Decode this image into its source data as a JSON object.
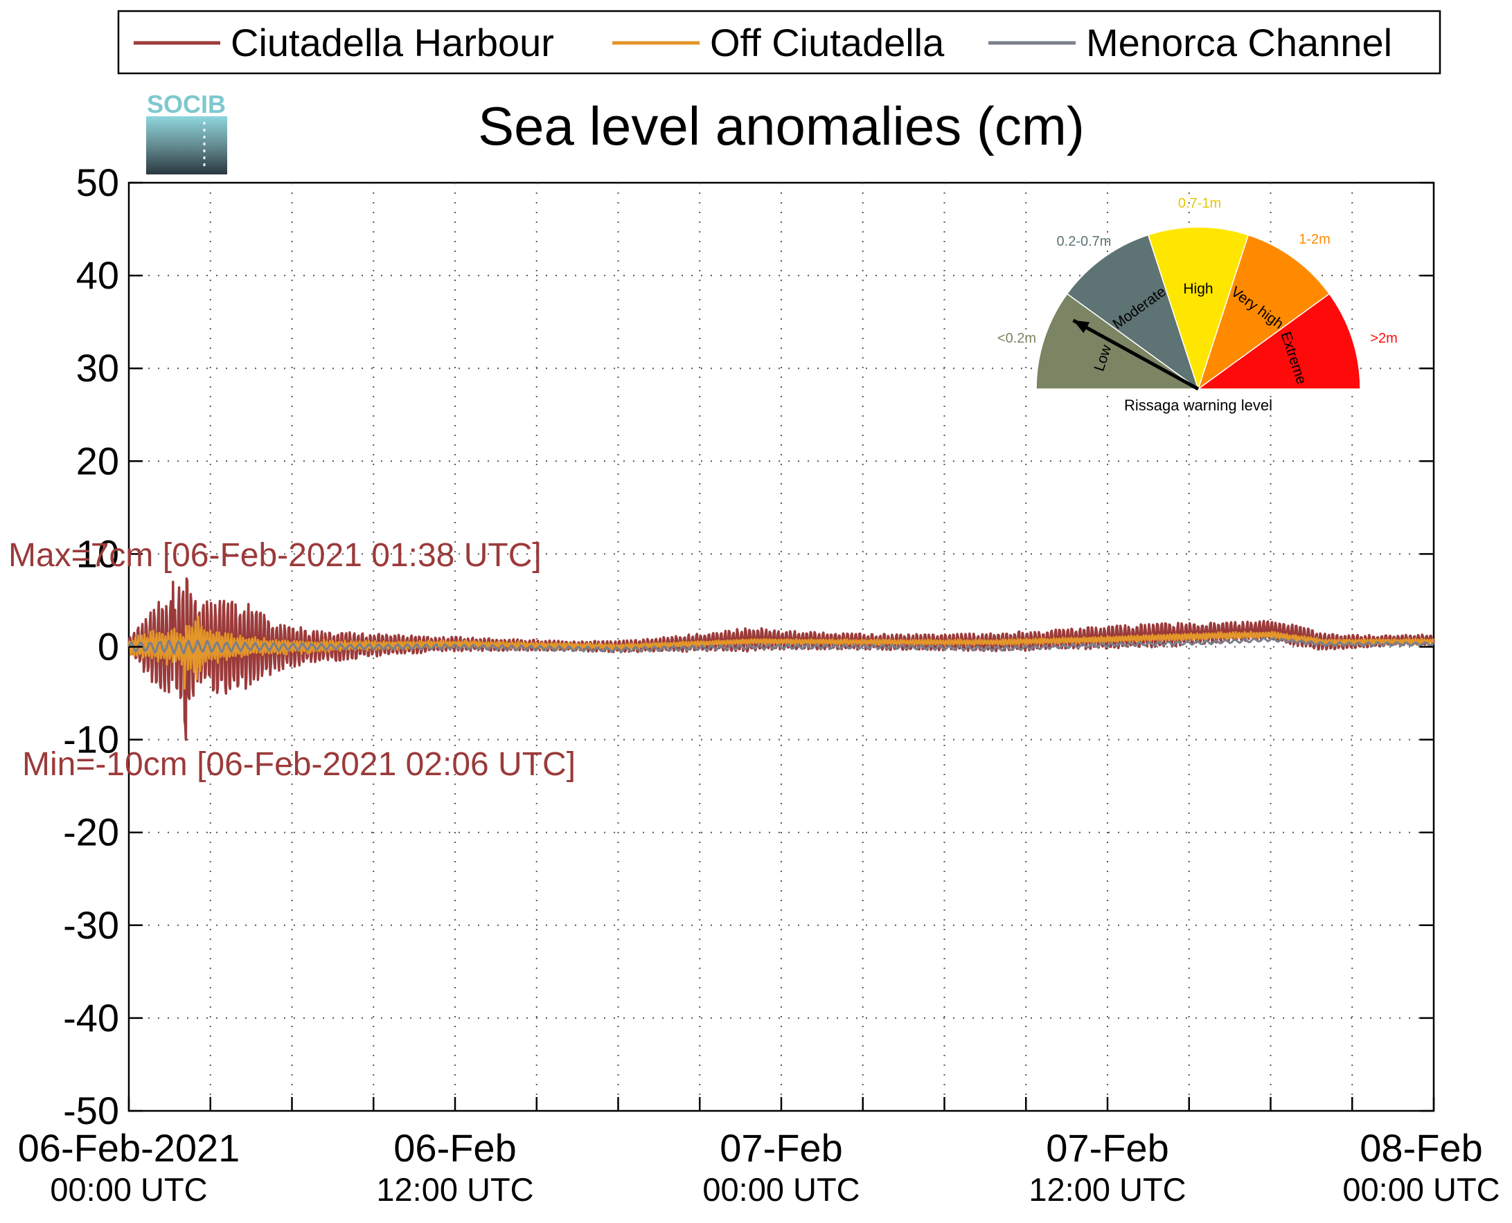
{
  "legend": {
    "items": [
      {
        "label": "Ciutadella Harbour",
        "color": "#9b3a3a"
      },
      {
        "label": "Off Ciutadella",
        "color": "#e3962a"
      },
      {
        "label": "Menorca Channel",
        "color": "#7a7f8c"
      }
    ]
  },
  "logo": {
    "text": "SOCIB"
  },
  "chart_data": {
    "type": "line",
    "title": "Sea level anomalies (cm)",
    "xlabel": "",
    "ylabel": "",
    "ylim": [
      -50,
      50
    ],
    "yticks": [
      50,
      40,
      30,
      20,
      10,
      0,
      -10,
      -20,
      -30,
      -40,
      -50
    ],
    "xlim_hours": [
      0,
      48
    ],
    "xticks": [
      {
        "line1": "06-Feb-2021",
        "line2": "00:00 UTC"
      },
      {
        "line1": "06-Feb",
        "line2": "12:00 UTC"
      },
      {
        "line1": "07-Feb",
        "line2": "00:00 UTC"
      },
      {
        "line1": "07-Feb",
        "line2": "12:00 UTC"
      },
      {
        "line1": "08-Feb",
        "line2": "00:00 UTC"
      }
    ],
    "grid": true,
    "annotations": {
      "max": "Max=7cm [06-Feb-2021 01:38 UTC]",
      "min": "Min=-10cm [06-Feb-2021 02:06 UTC]"
    },
    "series": [
      {
        "name": "Ciutadella Harbour",
        "color": "#9b3a3a",
        "envelope": [
          [
            0,
            1
          ],
          [
            0.5,
            3
          ],
          [
            1.2,
            6
          ],
          [
            1.63,
            7
          ],
          [
            2.1,
            10
          ],
          [
            2.6,
            5
          ],
          [
            3,
            6
          ],
          [
            3.5,
            6
          ],
          [
            4,
            6
          ],
          [
            4.6,
            5
          ],
          [
            5.5,
            3
          ],
          [
            7,
            2
          ],
          [
            9,
            1.5
          ],
          [
            11,
            1
          ],
          [
            13,
            0.8
          ],
          [
            16,
            0.6
          ],
          [
            19,
            0.8
          ],
          [
            23,
            1.5
          ],
          [
            24,
            1.2
          ],
          [
            26,
            1
          ],
          [
            30,
            1
          ],
          [
            34,
            1.3
          ],
          [
            38,
            1.5
          ],
          [
            41,
            1.2
          ],
          [
            43,
            1.3
          ],
          [
            45,
            0.8
          ],
          [
            48,
            0.6
          ]
        ],
        "baseline": [
          [
            0,
            0
          ],
          [
            6,
            0
          ],
          [
            12,
            0.3
          ],
          [
            18,
            0
          ],
          [
            23,
            0.8
          ],
          [
            28,
            0.5
          ],
          [
            32,
            0.5
          ],
          [
            36,
            1
          ],
          [
            40,
            1.5
          ],
          [
            42,
            1.8
          ],
          [
            44,
            0.5
          ],
          [
            48,
            0.8
          ]
        ],
        "key_points": [
          {
            "x": 1.63,
            "y": 7
          },
          {
            "x": 2.1,
            "y": -10
          }
        ]
      },
      {
        "name": "Off Ciutadella",
        "color": "#e3962a",
        "envelope": [
          [
            0,
            1
          ],
          [
            1,
            2
          ],
          [
            2,
            2
          ],
          [
            2.5,
            4
          ],
          [
            3,
            2
          ],
          [
            5,
            1
          ],
          [
            8,
            0.6
          ],
          [
            12,
            0.4
          ],
          [
            20,
            0.3
          ],
          [
            30,
            0.3
          ],
          [
            40,
            0.4
          ],
          [
            48,
            0.3
          ]
        ],
        "baseline": [
          [
            0,
            0
          ],
          [
            6,
            0
          ],
          [
            12,
            0.3
          ],
          [
            18,
            0
          ],
          [
            23,
            0.6
          ],
          [
            28,
            0.5
          ],
          [
            32,
            0.5
          ],
          [
            36,
            0.8
          ],
          [
            40,
            1.2
          ],
          [
            42,
            1.3
          ],
          [
            44,
            0.5
          ],
          [
            48,
            0.6
          ]
        ],
        "key_points": [
          {
            "x": 2.05,
            "y": -4.5
          }
        ]
      },
      {
        "name": "Menorca Channel",
        "color": "#7a7f8c",
        "envelope": [
          [
            0,
            0.5
          ],
          [
            2,
            0.8
          ],
          [
            4,
            0.5
          ],
          [
            8,
            0.3
          ],
          [
            48,
            0.2
          ]
        ],
        "baseline": [
          [
            0,
            0
          ],
          [
            6,
            0
          ],
          [
            12,
            0
          ],
          [
            18,
            -0.3
          ],
          [
            23,
            0
          ],
          [
            28,
            0
          ],
          [
            32,
            -0.2
          ],
          [
            36,
            0.2
          ],
          [
            40,
            0.5
          ],
          [
            42,
            0.8
          ],
          [
            44,
            0.3
          ],
          [
            48,
            0.3
          ]
        ],
        "key_points": []
      }
    ]
  },
  "gauge": {
    "caption": "Rissaga warning level",
    "sectors": [
      {
        "label": "Low",
        "range": "<0.2m",
        "color": "#7b8463"
      },
      {
        "label": "Moderate",
        "range": "0.2-0.7m",
        "color": "#5e7373"
      },
      {
        "label": "High",
        "range": "0.7-1m",
        "color": "#ffe600"
      },
      {
        "label": "Very high",
        "range": "1-2m",
        "color": "#ff8a00"
      },
      {
        "label": "Extreme",
        "range": ">2m",
        "color": "#ff0a0a"
      }
    ],
    "needle_level": 0.16
  }
}
